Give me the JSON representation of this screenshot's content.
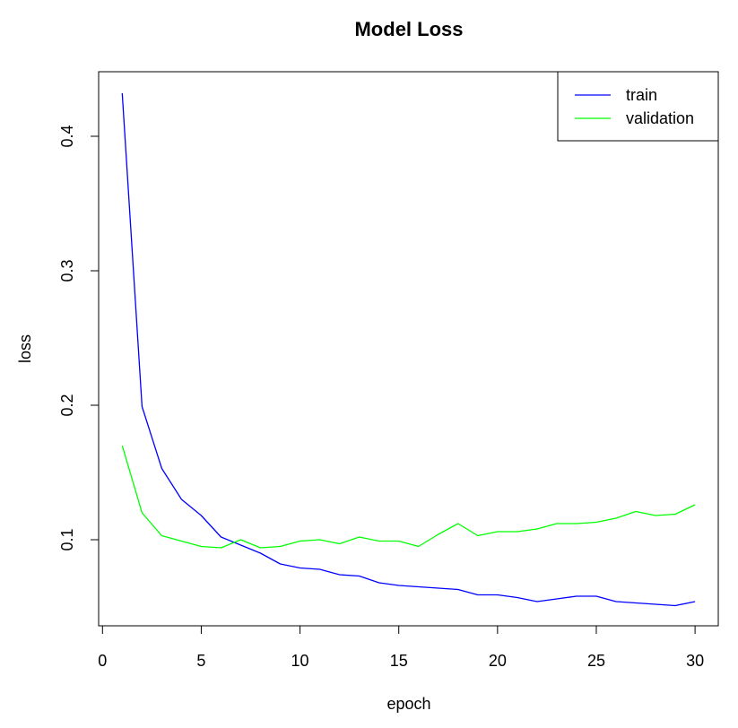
{
  "chart_data": {
    "type": "line",
    "title": "Model Loss",
    "xlabel": "epoch",
    "ylabel": "loss",
    "xlim": [
      0,
      30
    ],
    "ylim": [
      0.04,
      0.45
    ],
    "xticks": [
      0,
      5,
      10,
      15,
      20,
      25,
      30
    ],
    "yticks": [
      0.1,
      0.2,
      0.3,
      0.4
    ],
    "grid": false,
    "legend_position": "top-right",
    "x": [
      1,
      2,
      3,
      4,
      5,
      6,
      7,
      8,
      9,
      10,
      11,
      12,
      13,
      14,
      15,
      16,
      17,
      18,
      19,
      20,
      21,
      22,
      23,
      24,
      25,
      26,
      27,
      28,
      29,
      30
    ],
    "series": [
      {
        "name": "train",
        "color": "#0000ff",
        "values": [
          0.432,
          0.199,
          0.153,
          0.13,
          0.118,
          0.102,
          0.096,
          0.09,
          0.082,
          0.079,
          0.078,
          0.074,
          0.073,
          0.068,
          0.066,
          0.065,
          0.064,
          0.063,
          0.059,
          0.059,
          0.057,
          0.054,
          0.056,
          0.058,
          0.058,
          0.054,
          0.053,
          0.052,
          0.051,
          0.054
        ]
      },
      {
        "name": "validation",
        "color": "#00ff00",
        "values": [
          0.17,
          0.12,
          0.103,
          0.099,
          0.095,
          0.094,
          0.1,
          0.094,
          0.095,
          0.099,
          0.1,
          0.097,
          0.102,
          0.099,
          0.099,
          0.095,
          0.104,
          0.112,
          0.103,
          0.106,
          0.106,
          0.108,
          0.112,
          0.112,
          0.113,
          0.116,
          0.121,
          0.118,
          0.119,
          0.126
        ]
      }
    ]
  }
}
